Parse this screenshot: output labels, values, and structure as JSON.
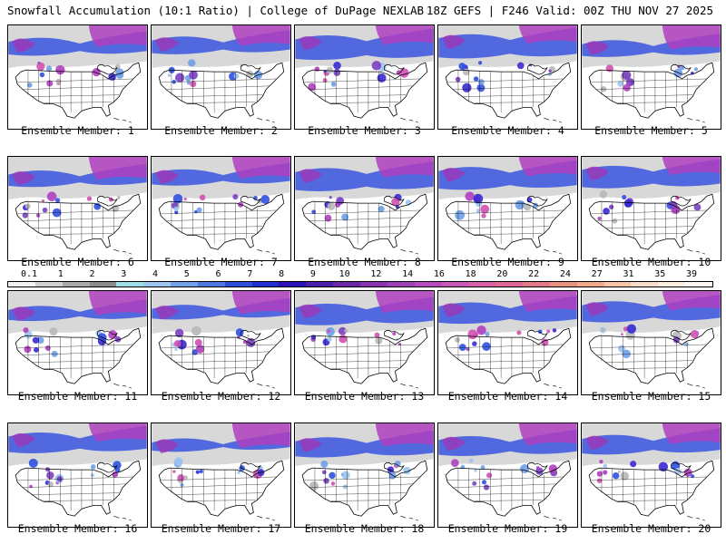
{
  "header": {
    "title_left": "Snowfall Accumulation (10:1 Ratio) | College of DuPage NEXLAB",
    "title_right": "18Z GEFS | F246 Valid: 00Z THU NOV 27 2025"
  },
  "members": [
    "Ensemble Member: 1",
    "Ensemble Member: 2",
    "Ensemble Member: 3",
    "Ensemble Member: 4",
    "Ensemble Member: 5",
    "Ensemble Member: 6",
    "Ensemble Member: 7",
    "Ensemble Member: 8",
    "Ensemble Member: 9",
    "Ensemble Member: 10",
    "Ensemble Member: 11",
    "Ensemble Member: 12",
    "Ensemble Member: 13",
    "Ensemble Member: 14",
    "Ensemble Member: 15",
    "Ensemble Member: 16",
    "Ensemble Member: 17",
    "Ensemble Member: 18",
    "Ensemble Member: 19",
    "Ensemble Member: 20"
  ],
  "legend": {
    "labels": [
      "0.1",
      "1",
      "2",
      "3",
      "4",
      "5",
      "6",
      "7",
      "8",
      "9",
      "10",
      "12",
      "14",
      "16",
      "18",
      "20",
      "22",
      "24",
      "27",
      "31",
      "35",
      "39"
    ],
    "colors": [
      "#f2f2f2",
      "#cfcfcf",
      "#a8a8a8",
      "#8a8a8a",
      "#9fdde8",
      "#9fc4ee",
      "#6fa0e8",
      "#4d78e0",
      "#2f4fd8",
      "#1f2fd0",
      "#2a14b8",
      "#4a20a8",
      "#6a2aa8",
      "#8a34b0",
      "#a040b8",
      "#b84ac0",
      "#c858b8",
      "#d860a8",
      "#e06898",
      "#e07888",
      "#e8907f",
      "#f0a888",
      "#f5c4a8",
      "#f8dcc8",
      "#fbeede",
      "#fdf6ee"
    ]
  }
}
